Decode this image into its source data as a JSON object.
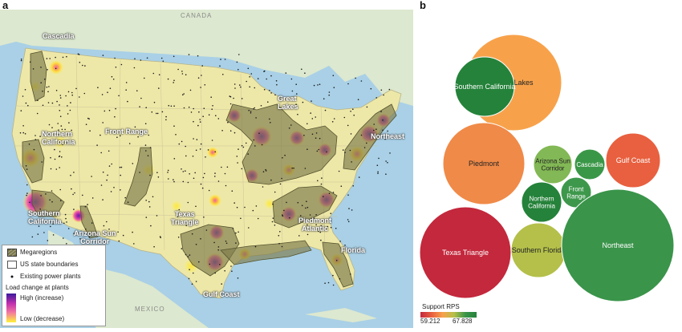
{
  "panels": {
    "a": "a",
    "b": "b"
  },
  "map": {
    "labels": {
      "cascadia": "Cascadia",
      "northern_california": "Northern\nCalifornia",
      "front_range": "Front Range",
      "great_lakes": "Great\nLakes",
      "northeast": "Northeast",
      "southern_california": "Southern\nCalifornia",
      "arizona_sun_corridor": "Arizona Sun\nCorridor",
      "texas_triangle": "Texas\nTriangle",
      "piedmont_atlantic": "Piedmont\nAtlantic",
      "florida": "Florida",
      "gulf_coast": "Gulf Coast",
      "canada": "CANADA",
      "mexico": "MEXICO"
    },
    "legend": {
      "megaregions": "Megaregions",
      "state_boundaries": "US state boundaries",
      "power_plants": "Existing power plants",
      "load_title": "Load change at plants",
      "high": "High (increase)",
      "low": "Low (decrease)"
    },
    "colors": {
      "ocean": "#a9d0e6",
      "land_foreign": "#dde8cf",
      "us_land": "#eee8a8",
      "megaregion": "#7d7a4a",
      "high": "#7b2fbe",
      "mid": "#e2389a",
      "low": "#fff23a"
    }
  },
  "bubbles": {
    "legend_title": "Support RPS",
    "legend_min": "59.212",
    "legend_max": "67.828",
    "items": [
      {
        "name": "Great Lakes",
        "rps": 63.2,
        "color": "#f7a24b"
      },
      {
        "name": "Southern California",
        "rps": 67.8,
        "color": "#25823a"
      },
      {
        "name": "Piedmont",
        "rps": 62.6,
        "color": "#f08a48"
      },
      {
        "name": "Arizona Sun Corridor",
        "rps": 65.7,
        "color": "#82b855"
      },
      {
        "name": "Cascadia",
        "rps": 67.3,
        "color": "#3b9748"
      },
      {
        "name": "Gulf Coast",
        "rps": 61.3,
        "color": "#e8603f"
      },
      {
        "name": "Northern California",
        "rps": 67.8,
        "color": "#25823a"
      },
      {
        "name": "Front Range",
        "rps": 67.0,
        "color": "#3e984c"
      },
      {
        "name": "Texas Triangle",
        "rps": 59.2,
        "color": "#c3283c"
      },
      {
        "name": "Southern Florida",
        "rps": 64.7,
        "color": "#b4c04a"
      },
      {
        "name": "Northeast",
        "rps": 67.0,
        "color": "#3a944a"
      }
    ]
  }
}
